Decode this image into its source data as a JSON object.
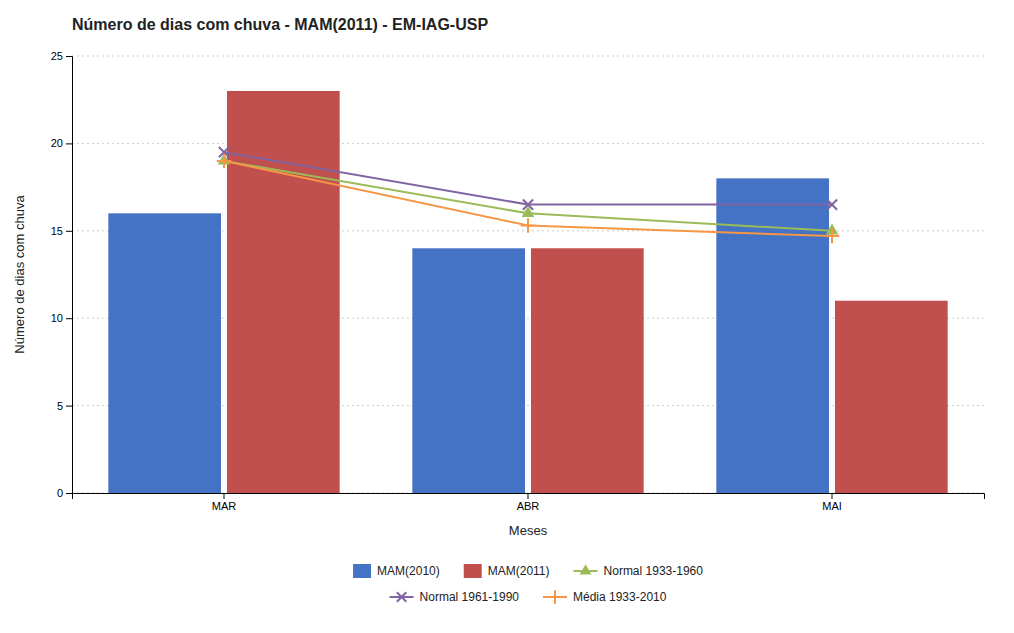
{
  "chart_data": {
    "type": "bar",
    "title": "Número de dias com chuva - MAM(2011) - EM-IAG-USP",
    "xlabel": "Meses",
    "ylabel": "Número de dias com chuva",
    "categories": [
      "MAR",
      "ABR",
      "MAI"
    ],
    "series": [
      {
        "name": "MAM(2010)",
        "type": "bar",
        "color": "#4472C4",
        "values": [
          16,
          14,
          18
        ]
      },
      {
        "name": "MAM(2011)",
        "type": "bar",
        "color": "#C0504D",
        "values": [
          23,
          14,
          11
        ]
      },
      {
        "name": "Normal 1933-1960",
        "type": "line",
        "color": "#9BBB59",
        "marker": "triangle",
        "values": [
          19,
          16,
          15
        ]
      },
      {
        "name": "Normal 1961-1990",
        "type": "line",
        "color": "#8064A2",
        "marker": "x",
        "values": [
          19.5,
          16.5,
          16.5
        ]
      },
      {
        "name": "Média 1933-2010",
        "type": "line",
        "color": "#F79646",
        "marker": "plus",
        "values": [
          19,
          15.3,
          14.7
        ]
      }
    ],
    "ylim": [
      0,
      25
    ],
    "yticks": [
      0,
      5,
      10,
      15,
      20,
      25
    ],
    "grid": true,
    "legend": "bottom"
  }
}
